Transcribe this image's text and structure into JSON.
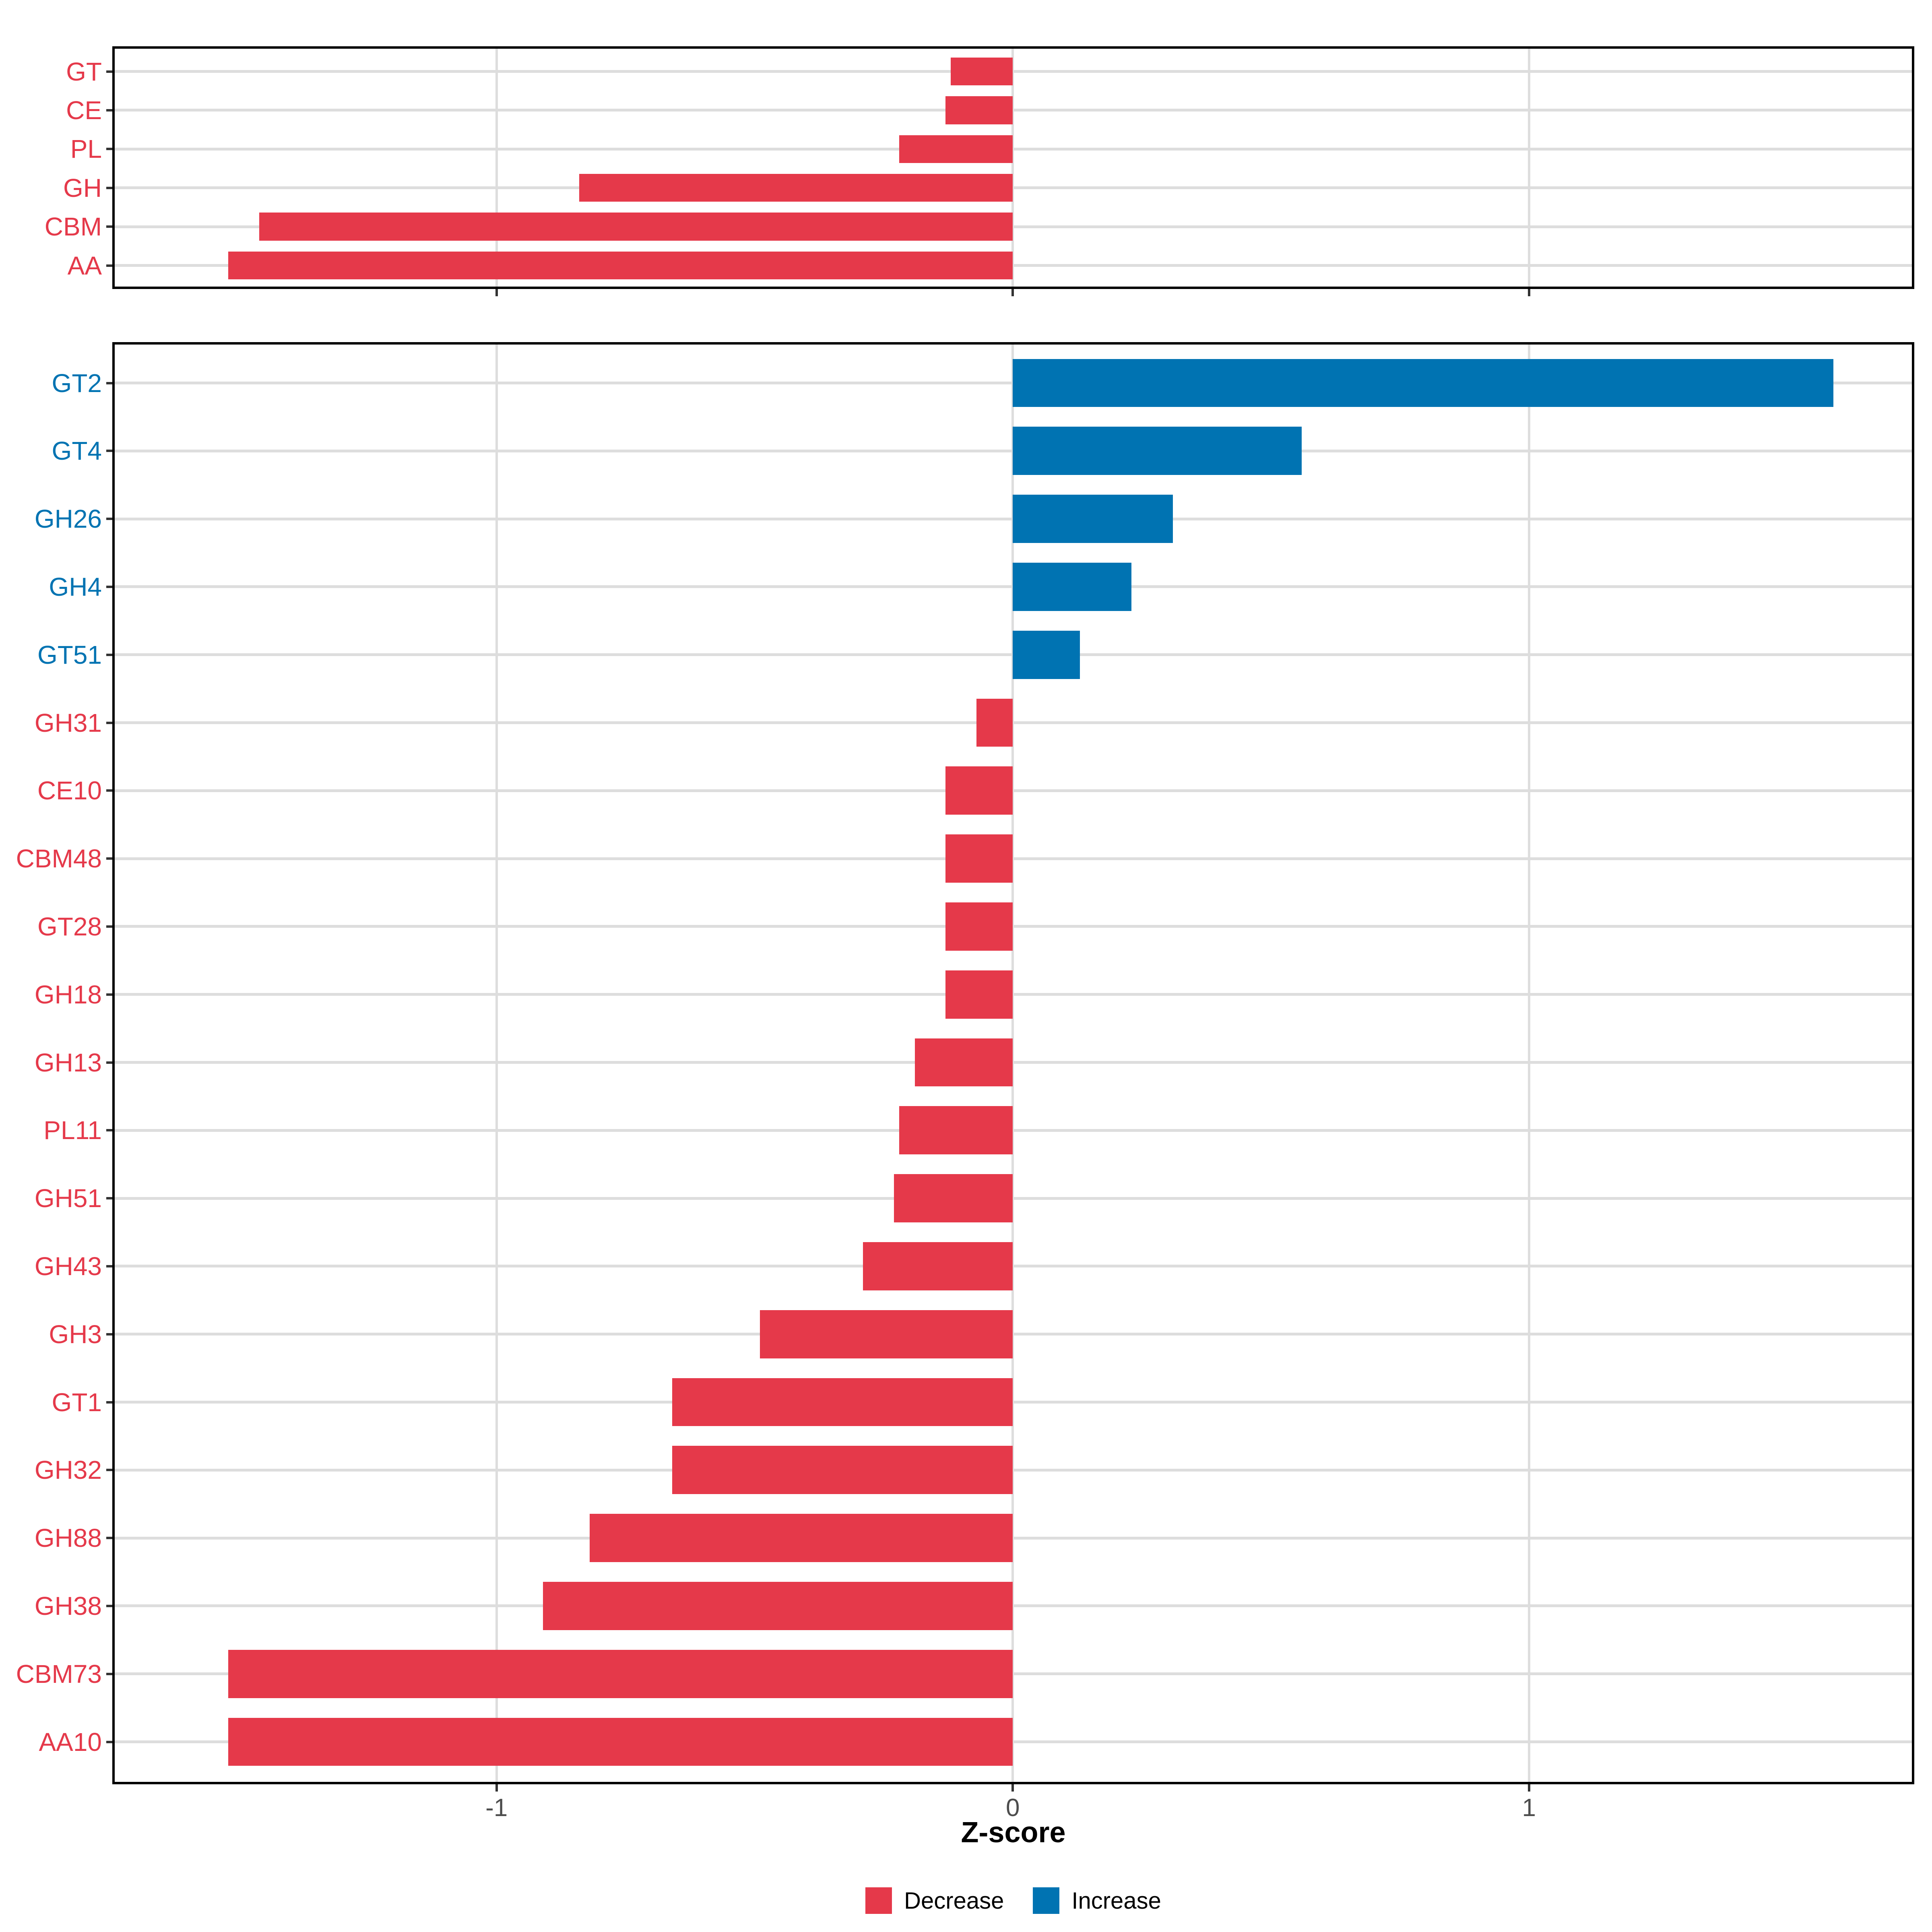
{
  "axis": {
    "title": "Z-score",
    "tick_values": [
      -1,
      0,
      1
    ],
    "tick_labels": [
      "-1",
      "0",
      "1"
    ],
    "domain": [
      -1.742,
      1.744
    ]
  },
  "colors": {
    "decrease": "#E5394A",
    "increase": "#0073B2",
    "grid": "#DDDDDD",
    "panel_border": "#000000",
    "axis_text": "#4D4D4D",
    "tick_mark": "#333333",
    "background": "#FFFFFF"
  },
  "legend": {
    "position": "bottom",
    "items": [
      {
        "label": "Decrease",
        "color": "#E5394A"
      },
      {
        "label": "Increase",
        "color": "#0073B2"
      }
    ]
  },
  "chart_data": [
    {
      "type": "bar",
      "orientation": "horizontal",
      "panel": "top",
      "title": "",
      "xlabel": "Z-score",
      "grid": true,
      "categories": [
        "GT",
        "CE",
        "PL",
        "GH",
        "CBM",
        "AA"
      ],
      "values": [
        -0.12,
        -0.13,
        -0.22,
        -0.84,
        -1.46,
        -1.52
      ]
    },
    {
      "type": "bar",
      "orientation": "horizontal",
      "panel": "bottom",
      "title": "",
      "xlabel": "Z-score",
      "grid": true,
      "categories": [
        "GT2",
        "GT4",
        "GH26",
        "GH4",
        "GT51",
        "GH31",
        "CE10",
        "CBM48",
        "GT28",
        "GH18",
        "GH13",
        "PL11",
        "GH51",
        "GH43",
        "GH3",
        "GT1",
        "GH32",
        "GH88",
        "GH38",
        "CBM73",
        "AA10"
      ],
      "values": [
        1.59,
        0.56,
        0.31,
        0.23,
        0.13,
        -0.07,
        -0.13,
        -0.13,
        -0.13,
        -0.13,
        -0.19,
        -0.22,
        -0.23,
        -0.29,
        -0.49,
        -0.66,
        -0.66,
        -0.82,
        -0.91,
        -1.52,
        -1.52
      ]
    }
  ]
}
